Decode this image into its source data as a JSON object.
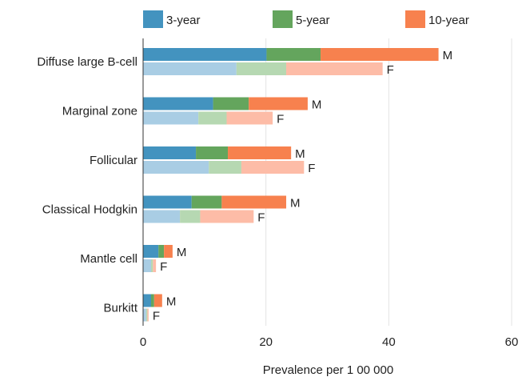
{
  "chart_data": {
    "type": "bar",
    "orientation": "horizontal",
    "stacked": true,
    "xlabel": "Prevalence per 1 00 000",
    "xlim": [
      0,
      60
    ],
    "xticks": [
      0,
      20,
      40,
      60
    ],
    "grid": "vertical",
    "legend_position": "top",
    "legend": [
      {
        "label": "3-year",
        "color": "#4393bf"
      },
      {
        "label": "5-year",
        "color": "#64a55d"
      },
      {
        "label": "10-year",
        "color": "#f7814e"
      }
    ],
    "colors_male": [
      "#4393bf",
      "#64a55d",
      "#f7814e"
    ],
    "colors_female": [
      "#a9cde4",
      "#b6d8b2",
      "#fdbca7"
    ],
    "categories": [
      {
        "name": "Diffuse large B-cell",
        "M": [
          20.1,
          8.8,
          19.2
        ],
        "F": [
          15.2,
          8.1,
          15.7
        ],
        "M_label": "M",
        "F_label": "F"
      },
      {
        "name": "Marginal zone",
        "M": [
          11.4,
          5.8,
          9.6
        ],
        "F": [
          9.0,
          4.6,
          7.5
        ],
        "M_label": "M",
        "F_label": "F"
      },
      {
        "name": "Follicular",
        "M": [
          8.6,
          5.2,
          10.3
        ],
        "F": [
          10.7,
          5.3,
          10.2
        ],
        "M_label": "M",
        "F_label": "F"
      },
      {
        "name": "Classical Hodgkin",
        "M": [
          7.9,
          4.9,
          10.5
        ],
        "F": [
          6.0,
          3.3,
          8.7
        ],
        "M_label": "M",
        "F_label": "F"
      },
      {
        "name": "Mantle cell",
        "M": [
          2.5,
          0.9,
          1.4
        ],
        "F": [
          1.3,
          0.3,
          0.5
        ],
        "M_label": "M",
        "F_label": "F"
      },
      {
        "name": "Burkitt",
        "M": [
          1.3,
          0.5,
          1.3
        ],
        "F": [
          0.5,
          0.2,
          0.2
        ],
        "M_label": "M",
        "F_label": "F"
      }
    ]
  }
}
